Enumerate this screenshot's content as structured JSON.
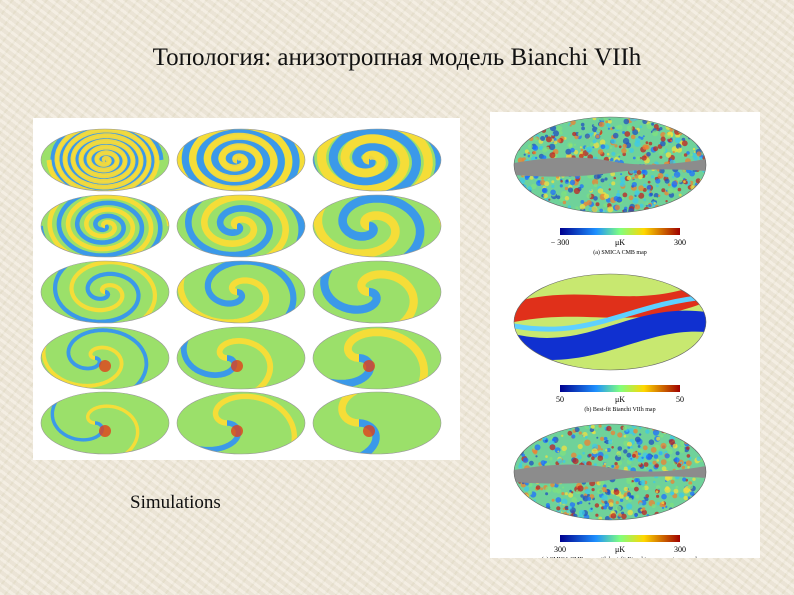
{
  "header": {
    "title": "Топология: анизотропная модель Bianchi VIIh"
  },
  "left_panel": {
    "caption": "Simulations"
  },
  "right_panel": {
    "maps": [
      {
        "min_label": "− 300",
        "unit": "μK",
        "max_label": "300",
        "caption": "(a) SMICA CMB map"
      },
      {
        "min_label": "50",
        "unit": "μK",
        "max_label": "50",
        "caption": "(b) Best-fit Bianchi VIIh map"
      },
      {
        "min_label": "300",
        "unit": "μK",
        "max_label": "300",
        "caption": "(c) SMICA CMB map with best-fit Bianchi component removed."
      }
    ]
  }
}
